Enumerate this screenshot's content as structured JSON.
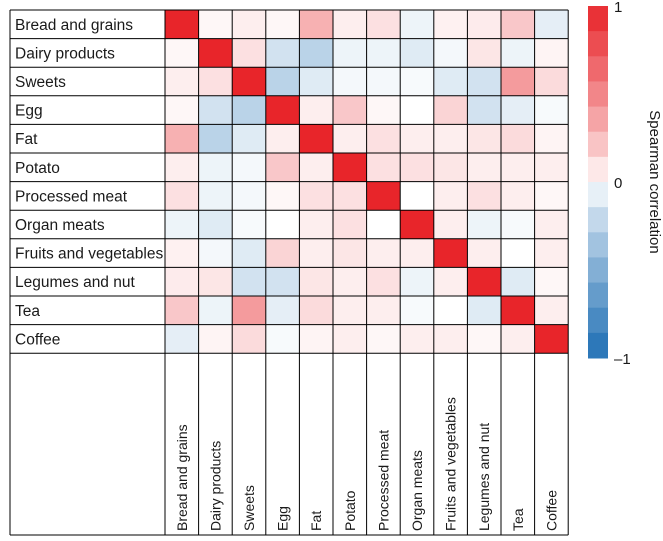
{
  "chart_data": {
    "type": "heatmap",
    "title": "",
    "xlabel": "",
    "ylabel": "",
    "rows": [
      "Bread and grains",
      "Dairy products",
      "Sweets",
      "Egg",
      "Fat",
      "Potato",
      "Processed meat",
      "Organ meats",
      "Fruits and vegetables",
      "Legumes and nut",
      "Tea",
      "Coffee"
    ],
    "columns": [
      "Bread and grains",
      "Dairy products",
      "Sweets",
      "Egg",
      "Fat",
      "Potato",
      "Processed meat",
      "Organ meats",
      "Fruits and vegetables",
      "Legumes and nut",
      "Tea",
      "Coffee"
    ],
    "values": [
      [
        1.0,
        0.02,
        0.05,
        0.02,
        0.3,
        0.05,
        0.1,
        -0.05,
        0.04,
        0.06,
        0.2,
        -0.08
      ],
      [
        0.02,
        1.0,
        0.1,
        -0.15,
        -0.25,
        -0.05,
        -0.05,
        -0.1,
        -0.03,
        0.08,
        -0.05,
        0.03
      ],
      [
        0.05,
        0.1,
        1.0,
        -0.25,
        -0.1,
        -0.03,
        -0.03,
        -0.02,
        -0.1,
        -0.15,
        0.4,
        0.12
      ],
      [
        0.02,
        -0.15,
        -0.25,
        1.0,
        0.05,
        0.2,
        0.02,
        0.0,
        0.15,
        -0.15,
        -0.08,
        -0.02
      ],
      [
        0.3,
        -0.25,
        -0.1,
        0.05,
        1.0,
        0.05,
        0.1,
        0.05,
        0.05,
        0.08,
        0.12,
        0.03
      ],
      [
        0.05,
        -0.05,
        -0.03,
        0.2,
        0.05,
        1.0,
        0.1,
        0.1,
        0.08,
        0.05,
        0.05,
        0.05
      ],
      [
        0.1,
        -0.05,
        -0.03,
        0.02,
        0.1,
        0.1,
        1.0,
        0.0,
        0.05,
        0.1,
        0.05,
        0.02
      ],
      [
        -0.05,
        -0.1,
        -0.02,
        0.0,
        0.05,
        0.1,
        0.0,
        1.0,
        0.05,
        -0.05,
        -0.02,
        0.05
      ],
      [
        0.04,
        -0.03,
        -0.1,
        0.15,
        0.05,
        0.08,
        0.05,
        0.05,
        1.0,
        0.05,
        0.0,
        0.05
      ],
      [
        0.06,
        0.08,
        -0.15,
        -0.15,
        0.08,
        0.05,
        0.1,
        -0.05,
        0.05,
        1.0,
        -0.1,
        0.02
      ],
      [
        0.2,
        -0.05,
        0.4,
        -0.08,
        0.12,
        0.05,
        0.05,
        -0.02,
        0.0,
        -0.1,
        1.0,
        0.05
      ],
      [
        -0.08,
        0.03,
        0.12,
        -0.02,
        0.03,
        0.05,
        0.02,
        0.05,
        0.05,
        0.02,
        0.05,
        1.0
      ]
    ],
    "colorbar": {
      "label": "Spearman correlation",
      "range": [
        -1,
        1
      ],
      "tick_values": [
        1,
        0,
        -1
      ],
      "tick_labels": [
        "1",
        "0",
        "–1"
      ],
      "levels": 14
    },
    "grid": true,
    "legend": "right"
  },
  "colors": {
    "negative": "#1f6fb4",
    "neutral": "#ffffff",
    "positive": "#e8252a",
    "grid": "#000000"
  }
}
